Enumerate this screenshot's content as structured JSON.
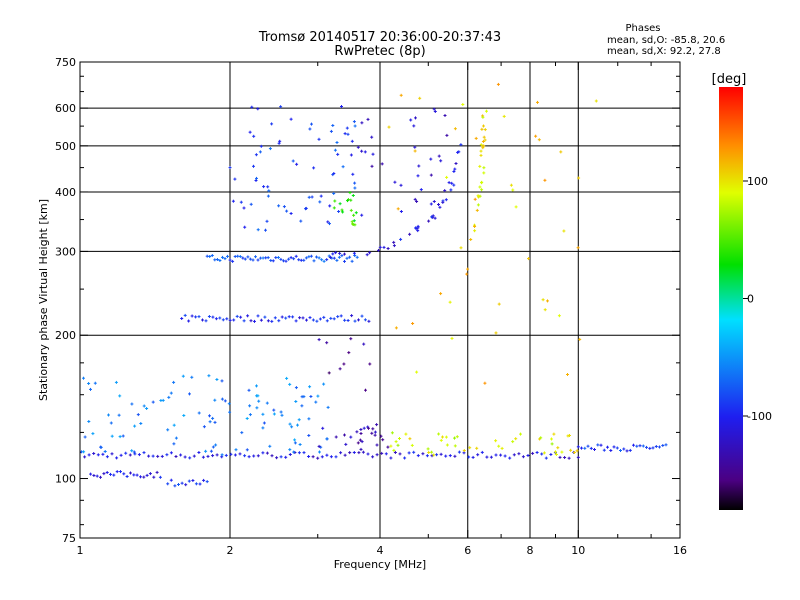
{
  "chart_data": {
    "type": "scatter",
    "title": "Tromsø 20140517 20:36:00-20:37:43",
    "subtitle": "RwPretec (8p)",
    "xlabel": "Frequency [MHz]",
    "ylabel": "Stationary phase Virtual Height [km]",
    "x_scale": "log",
    "y_scale": "log",
    "xlim": [
      1,
      16
    ],
    "ylim": [
      75,
      750
    ],
    "x_ticks": [
      1,
      2,
      4,
      6,
      8,
      10,
      16
    ],
    "x_tick_labels": [
      "1",
      "2",
      "4",
      "6",
      "8",
      "10",
      "16"
    ],
    "y_ticks": [
      75,
      100,
      200,
      300,
      400,
      500,
      600,
      750
    ],
    "y_tick_labels": [
      "75",
      "100",
      "200",
      "300",
      "400",
      "500",
      "600",
      "750"
    ],
    "grid_x": [
      2,
      4,
      6,
      8,
      10
    ],
    "grid_y": [
      200,
      300,
      400,
      500,
      600
    ],
    "grid": true,
    "stats": {
      "heading": "Phases",
      "line_o": "mean, sd,O: -85.8, 20.6",
      "line_x": "mean, sd,X:  92.2, 27.8"
    },
    "colorbar": {
      "label": "[deg]",
      "range": [
        -180,
        180
      ],
      "ticks": [
        -100,
        0,
        100
      ],
      "tick_labels": [
        "-100",
        "0",
        "100"
      ],
      "colormap": "rainbow (black-purple-blue-cyan-green-yellow-red)"
    },
    "traces": [
      {
        "kind": "line",
        "x_range": [
          1.0,
          10.0
        ],
        "y": 112,
        "phase": -110,
        "count": 110
      },
      {
        "kind": "line",
        "x_range": [
          10.0,
          15.0
        ],
        "y": 116,
        "phase": -90,
        "count": 28
      },
      {
        "kind": "line",
        "x_range": [
          1.6,
          3.8
        ],
        "y": 217,
        "phase": -100,
        "count": 55
      },
      {
        "kind": "line",
        "x_range": [
          1.05,
          1.45
        ],
        "y": 102,
        "phase": -105,
        "count": 22
      },
      {
        "kind": "line",
        "x_range": [
          1.5,
          1.8
        ],
        "y": 98,
        "phase": -95,
        "count": 12
      },
      {
        "kind": "line",
        "x_range": [
          1.8,
          3.6
        ],
        "y": 290,
        "phase": -80,
        "count": 60
      },
      {
        "kind": "curve",
        "x": [
          3.2,
          3.8,
          4.3,
          4.8,
          5.2,
          5.5,
          5.7,
          5.8
        ],
        "y": [
          295,
          300,
          310,
          335,
          360,
          400,
          450,
          500
        ],
        "phase": -110,
        "count": 40
      },
      {
        "kind": "curve",
        "x": [
          6.2,
          6.3,
          6.4,
          6.45,
          6.5
        ],
        "y": [
          330,
          380,
          440,
          520,
          600
        ],
        "phase": 100,
        "count": 30
      },
      {
        "kind": "scatter",
        "x_range": [
          1.0,
          3.2
        ],
        "y_range": [
          112,
          165
        ],
        "phase": -60,
        "count": 110
      },
      {
        "kind": "scatter",
        "x_range": [
          3.0,
          4.2
        ],
        "y_range": [
          115,
          130
        ],
        "phase": -130,
        "count": 25
      },
      {
        "kind": "scatter",
        "x_range": [
          4.2,
          10.0
        ],
        "y_range": [
          112,
          125
        ],
        "phase": 90,
        "count": 45
      },
      {
        "kind": "scatter",
        "x_range": [
          2.0,
          3.6
        ],
        "y_range": [
          330,
          620
        ],
        "phase": -85,
        "count": 70
      },
      {
        "kind": "scatter",
        "x_range": [
          3.5,
          5.5
        ],
        "y_range": [
          350,
          620
        ],
        "phase": -120,
        "count": 35
      },
      {
        "kind": "scatter",
        "x_range": [
          3.2,
          3.6
        ],
        "y_range": [
          340,
          400
        ],
        "phase": 40,
        "count": 18
      },
      {
        "kind": "scatter",
        "x_range": [
          4.0,
          11.0
        ],
        "y_range": [
          150,
          700
        ],
        "phase": 110,
        "count": 45
      },
      {
        "kind": "scatter",
        "x_range": [
          3.0,
          4.0
        ],
        "y_range": [
          150,
          200
        ],
        "phase": -140,
        "count": 10
      }
    ]
  }
}
